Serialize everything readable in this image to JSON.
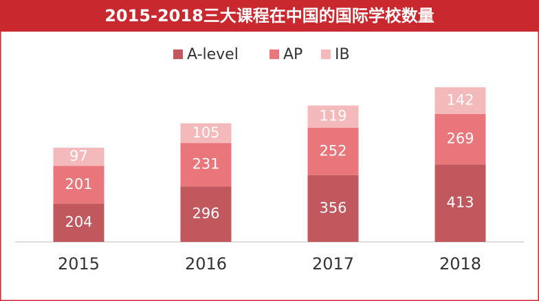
{
  "chart_data": {
    "type": "stacked-bar",
    "title": "2015-2018三大课程在中国的国际学校数量",
    "categories": [
      "2015",
      "2016",
      "2017",
      "2018"
    ],
    "series": [
      {
        "name": "A-level",
        "color": "#c0585e",
        "values": [
          204,
          296,
          356,
          413
        ]
      },
      {
        "name": "AP",
        "color": "#e8767b",
        "values": [
          201,
          231,
          252,
          269
        ]
      },
      {
        "name": "IB",
        "color": "#f4b9bb",
        "values": [
          97,
          105,
          119,
          142
        ]
      }
    ],
    "legend": "top"
  }
}
